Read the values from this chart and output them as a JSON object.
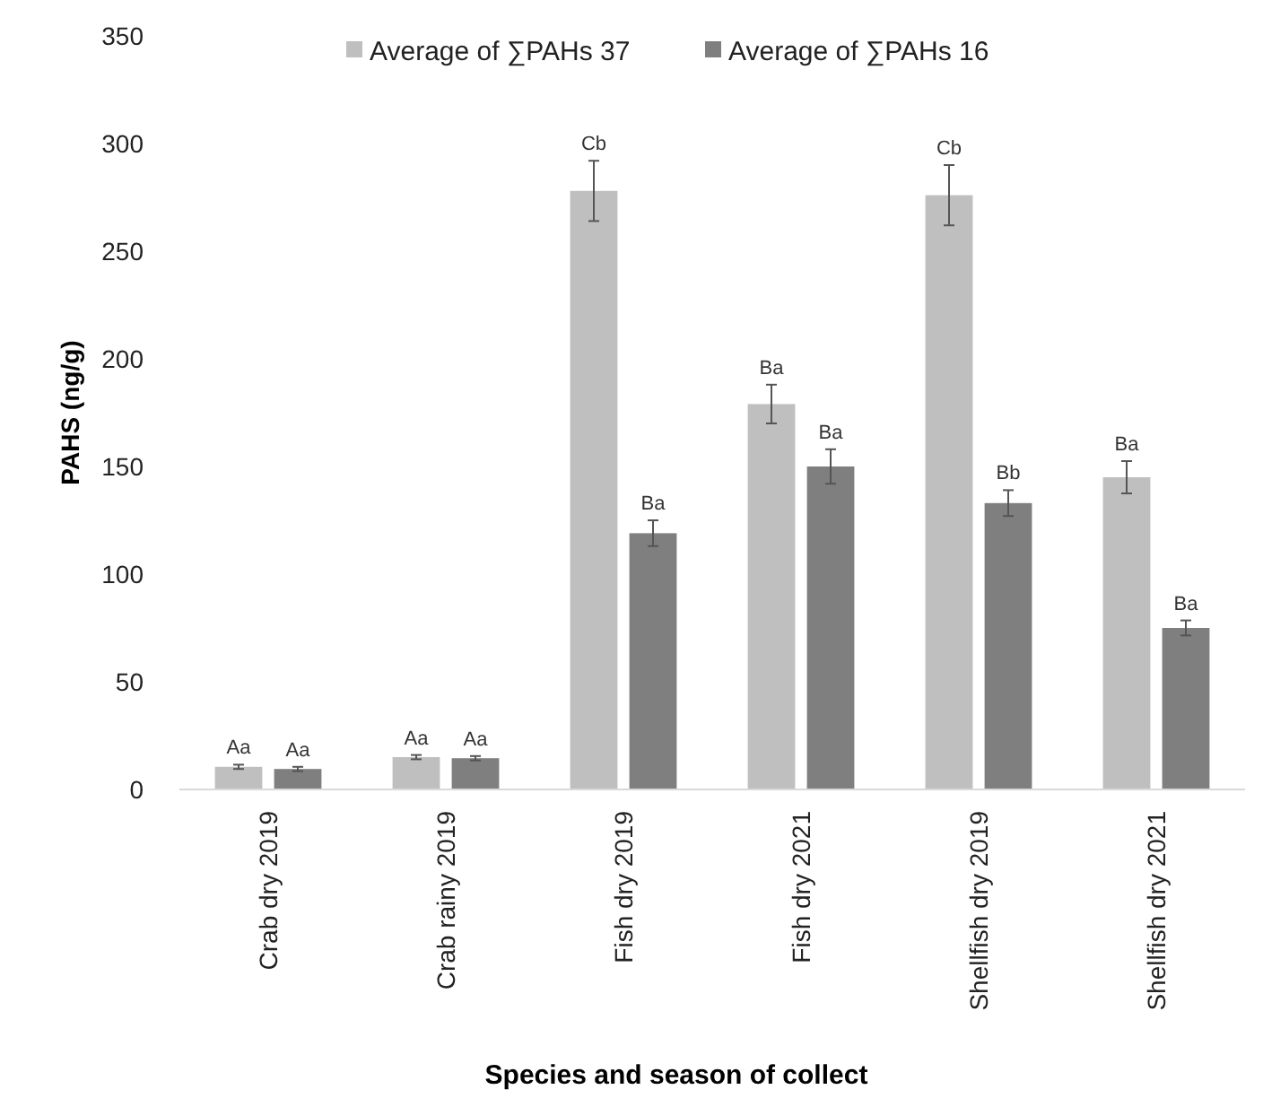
{
  "chart_data": {
    "type": "bar",
    "xlabel": "Species and season of  collect",
    "ylabel": "PAHS (ng/g)",
    "categories": [
      "Crab dry 2019",
      "Crab rainy 2019",
      "Fish dry 2019",
      "Fish dry 2021",
      "Shellfish dry 2019",
      "Shellfish dry 2021"
    ],
    "series": [
      {
        "name": "Average of ∑PAHs 37",
        "color": "#bfbfbf",
        "values": [
          10.5,
          15,
          278,
          179,
          276,
          145
        ],
        "errors": [
          1,
          1,
          14,
          9,
          14,
          7.5
        ],
        "value_labels": [
          "Aa",
          "Aa",
          "Cb",
          "Ba",
          "Cb",
          "Ba"
        ]
      },
      {
        "name": "Average of ∑PAHs 16",
        "color": "#7f7f7f",
        "values": [
          9.5,
          14.5,
          119,
          150,
          133,
          75
        ],
        "errors": [
          1,
          1,
          6,
          8,
          6,
          3.5
        ],
        "value_labels": [
          "Aa",
          "Aa",
          "Ba",
          "Ba",
          "Bb",
          "Ba"
        ]
      }
    ],
    "ylim": [
      0,
      350
    ],
    "yticks": [
      0,
      50,
      100,
      150,
      200,
      250,
      300,
      350
    ],
    "grid": false,
    "legend": "top"
  }
}
